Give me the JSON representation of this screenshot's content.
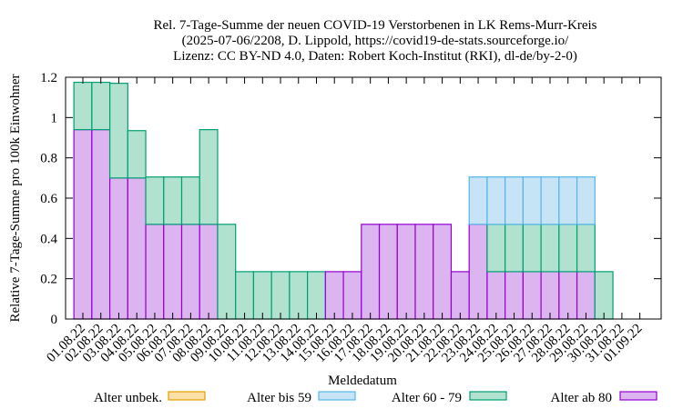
{
  "chart_data": {
    "type": "bar",
    "stacked": true,
    "title_lines": [
      "Rel. 7-Tage-Summe der neuen COVID-19 Verstorbenen in LK Rems-Murr-Kreis",
      "(2025-07-06/2208, D. Lippold, https://covid19-de-stats.sourceforge.io/",
      "Lizenz: CC BY-ND 4.0, Daten: Robert Koch-Institut (RKI), dl-de/by-2-0)"
    ],
    "xlabel": "Meldedatum",
    "ylabel": "Relative 7-Tage-Summe pro 100k Einwohner",
    "ylim": [
      0,
      1.2
    ],
    "yticks": [
      "0",
      "0.2",
      "0.4",
      "0.6",
      "0.8",
      "1",
      "1.2"
    ],
    "categories": [
      "01.08.22",
      "02.08.22",
      "03.08.22",
      "04.08.22",
      "05.08.22",
      "06.08.22",
      "07.08.22",
      "08.08.22",
      "09.08.22",
      "10.08.22",
      "11.08.22",
      "12.08.22",
      "13.08.22",
      "14.08.22",
      "15.08.22",
      "16.08.22",
      "17.08.22",
      "18.08.22",
      "19.08.22",
      "20.08.22",
      "21.08.22",
      "22.08.22",
      "23.08.22",
      "24.08.22",
      "25.08.22",
      "26.08.22",
      "27.08.22",
      "28.08.22",
      "29.08.22",
      "30.08.22",
      "31.08.22",
      "01.09.22"
    ],
    "legend_position": "bottom",
    "series": [
      {
        "name": "Alter ab 80",
        "fill": "#dcb4f0",
        "stroke": "#9400d3",
        "values": [
          0.94,
          0.94,
          0.7,
          0.7,
          0.47,
          0.47,
          0.47,
          0.47,
          0,
          0,
          0,
          0,
          0,
          0,
          0.235,
          0.235,
          0.47,
          0.47,
          0.47,
          0.47,
          0.47,
          0.235,
          0.47,
          0.235,
          0.235,
          0.235,
          0.235,
          0.235,
          0.235,
          0,
          0,
          0
        ]
      },
      {
        "name": "Alter 60 - 79",
        "fill": "#b0e2cf",
        "stroke": "#009e73",
        "values": [
          0.235,
          0.235,
          0.47,
          0.235,
          0.235,
          0.235,
          0.235,
          0.47,
          0.47,
          0.235,
          0.235,
          0.235,
          0.235,
          0.235,
          0,
          0,
          0,
          0,
          0,
          0,
          0,
          0,
          0,
          0.235,
          0.235,
          0.235,
          0.235,
          0.235,
          0.235,
          0.235,
          0,
          0
        ]
      },
      {
        "name": "Alter bis 59",
        "fill": "#c6e4f6",
        "stroke": "#56b4e9",
        "values": [
          0,
          0,
          0,
          0,
          0,
          0,
          0,
          0,
          0,
          0,
          0,
          0,
          0,
          0,
          0,
          0,
          0,
          0,
          0,
          0,
          0,
          0,
          0.235,
          0.235,
          0.235,
          0.235,
          0.235,
          0.235,
          0.235,
          0,
          0,
          0
        ]
      },
      {
        "name": "Alter unbek.",
        "fill": "#fbe0a8",
        "stroke": "#e69f00",
        "values": [
          0,
          0,
          0,
          0,
          0,
          0,
          0,
          0,
          0,
          0,
          0,
          0,
          0,
          0,
          0,
          0,
          0,
          0,
          0,
          0,
          0,
          0,
          0,
          0,
          0,
          0,
          0,
          0,
          0,
          0,
          0,
          0
        ]
      }
    ],
    "legend_order": [
      "Alter unbek.",
      "Alter bis 59",
      "Alter 60 - 79",
      "Alter ab 80"
    ]
  }
}
